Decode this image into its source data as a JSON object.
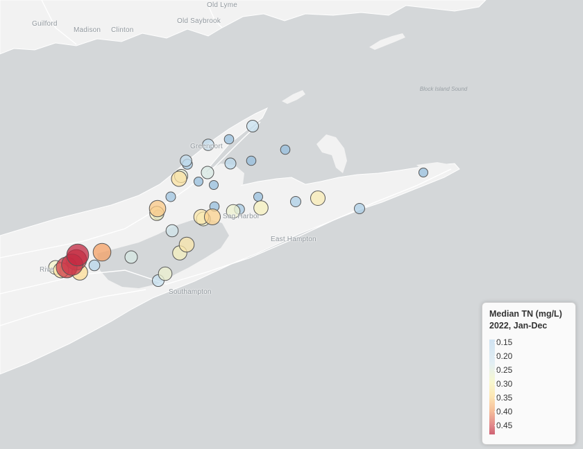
{
  "map": {
    "places": [
      {
        "id": "old-lyme",
        "label": "Old Lyme"
      },
      {
        "id": "guilford",
        "label": "Guilford"
      },
      {
        "id": "madison",
        "label": "Madison"
      },
      {
        "id": "clinton",
        "label": "Clinton"
      },
      {
        "id": "old-saybrook",
        "label": "Old Saybrook"
      },
      {
        "id": "greenport",
        "label": "Greenport"
      },
      {
        "id": "sag-harbor",
        "label": "Sag Harbor"
      },
      {
        "id": "east-hampton",
        "label": "East Hampton"
      },
      {
        "id": "southampton",
        "label": "Southampton"
      },
      {
        "id": "riverhead",
        "label": "Rive"
      }
    ],
    "water_label": "Block Island Sound",
    "colors": {
      "water": "#d4d7d9",
      "land": "#f2f2f2",
      "road": "#ffffff",
      "marker_stroke": "#555555"
    },
    "markers": [
      {
        "value": 0.49
      },
      {
        "value": 0.47
      },
      {
        "value": 0.46
      },
      {
        "value": 0.45
      },
      {
        "value": 0.37
      },
      {
        "value": 0.33
      },
      {
        "value": 0.32
      },
      {
        "value": 0.31
      },
      {
        "value": 0.3
      },
      {
        "value": 0.29
      },
      {
        "value": 0.28
      },
      {
        "value": 0.27
      },
      {
        "value": 0.27
      },
      {
        "value": 0.26
      },
      {
        "value": 0.25
      },
      {
        "value": 0.24
      },
      {
        "value": 0.22
      },
      {
        "value": 0.21
      },
      {
        "value": 0.2
      },
      {
        "value": 0.19
      },
      {
        "value": 0.18
      },
      {
        "value": 0.17
      },
      {
        "value": 0.16
      },
      {
        "value": 0.16
      },
      {
        "value": 0.15
      },
      {
        "value": 0.15
      },
      {
        "value": 0.14
      },
      {
        "value": 0.14
      },
      {
        "value": 0.13
      },
      {
        "value": 0.13
      },
      {
        "value": 0.13
      },
      {
        "value": 0.12
      },
      {
        "value": 0.12
      },
      {
        "value": 0.12
      },
      {
        "value": 0.12
      },
      {
        "value": 0.26
      },
      {
        "value": 0.19
      },
      {
        "value": 0.29
      },
      {
        "value": 0.13
      },
      {
        "value": 0.27
      },
      {
        "value": 0.3
      },
      {
        "value": 0.2
      },
      {
        "value": 0.22
      },
      {
        "value": 0.25
      },
      {
        "value": 0.29
      }
    ]
  },
  "legend": {
    "title_line1": "Median TN (mg/L)",
    "title_line2": "2022, Jan-Dec",
    "ticks": [
      "0.15",
      "0.20",
      "0.25",
      "0.30",
      "0.35",
      "0.40",
      "0.45"
    ]
  }
}
